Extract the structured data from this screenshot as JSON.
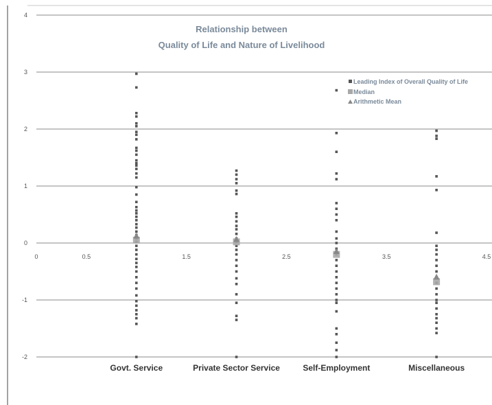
{
  "chart_data": {
    "type": "scatter",
    "title_lines": [
      "Relationship between",
      "Quality of Life and Nature of Livelihood"
    ],
    "xlim": [
      0,
      4.5
    ],
    "ylim": [
      -2,
      4
    ],
    "x_ticks": [
      0,
      0.5,
      1.5,
      2.5,
      3.5,
      4.5
    ],
    "x_tick_labels": [
      "0",
      "0.5",
      "1.5",
      "2.5",
      "3.5",
      "4.5"
    ],
    "y_ticks": [
      4,
      3,
      2,
      1,
      0,
      -1,
      -2
    ],
    "y_tick_labels": [
      "4",
      "3",
      "2",
      "1",
      "0",
      "-1",
      "-2"
    ],
    "categories": [
      {
        "label": "Govt. Service",
        "x": 1
      },
      {
        "label": "Private Sector Service",
        "x": 2
      },
      {
        "label": "Self-Employment",
        "x": 3
      },
      {
        "label": "Miscellaneous",
        "x": 4
      }
    ],
    "legend": {
      "placement": "top-right",
      "entries": [
        {
          "label": "Leading Index of Overall Quality of Life",
          "marker": "square-small",
          "color": "#555555"
        },
        {
          "label": "Median",
          "marker": "square",
          "color": "#a8a8a8"
        },
        {
          "label": "Arithmetic Mean",
          "marker": "triangle",
          "color": "#888888"
        }
      ]
    },
    "series": [
      {
        "name": "Leading Index of Overall Quality of Life",
        "points": [
          [
            1,
            2.97
          ],
          [
            1,
            2.73
          ],
          [
            1,
            2.28
          ],
          [
            1,
            2.22
          ],
          [
            1,
            2.1
          ],
          [
            1,
            2.05
          ],
          [
            1,
            1.95
          ],
          [
            1,
            1.9
          ],
          [
            1,
            1.82
          ],
          [
            1,
            1.67
          ],
          [
            1,
            1.62
          ],
          [
            1,
            1.55
          ],
          [
            1,
            1.45
          ],
          [
            1,
            1.4
          ],
          [
            1,
            1.36
          ],
          [
            1,
            1.3
          ],
          [
            1,
            1.22
          ],
          [
            1,
            1.15
          ],
          [
            1,
            0.98
          ],
          [
            1,
            0.85
          ],
          [
            1,
            0.72
          ],
          [
            1,
            0.63
          ],
          [
            1,
            0.57
          ],
          [
            1,
            0.52
          ],
          [
            1,
            0.46
          ],
          [
            1,
            0.4
          ],
          [
            1,
            0.33
          ],
          [
            1,
            0.27
          ],
          [
            1,
            0.2
          ],
          [
            1,
            0.14
          ],
          [
            1,
            0.08
          ],
          [
            1,
            0.02
          ],
          [
            1,
            -0.05
          ],
          [
            1,
            -0.12
          ],
          [
            1,
            -0.2
          ],
          [
            1,
            -0.28
          ],
          [
            1,
            -0.35
          ],
          [
            1,
            -0.42
          ],
          [
            1,
            -0.5
          ],
          [
            1,
            -0.6
          ],
          [
            1,
            -0.7
          ],
          [
            1,
            -0.8
          ],
          [
            1,
            -0.92
          ],
          [
            1,
            -1.02
          ],
          [
            1,
            -1.1
          ],
          [
            1,
            -1.18
          ],
          [
            1,
            -1.25
          ],
          [
            1,
            -1.32
          ],
          [
            1,
            -1.42
          ],
          [
            1,
            -2.0
          ],
          [
            2,
            1.27
          ],
          [
            2,
            1.2
          ],
          [
            2,
            1.12
          ],
          [
            2,
            1.05
          ],
          [
            2,
            0.92
          ],
          [
            2,
            0.86
          ],
          [
            2,
            0.52
          ],
          [
            2,
            0.46
          ],
          [
            2,
            0.38
          ],
          [
            2,
            0.3
          ],
          [
            2,
            0.24
          ],
          [
            2,
            0.16
          ],
          [
            2,
            0.08
          ],
          [
            2,
            0.02
          ],
          [
            2,
            -0.05
          ],
          [
            2,
            -0.12
          ],
          [
            2,
            -0.2
          ],
          [
            2,
            -0.3
          ],
          [
            2,
            -0.4
          ],
          [
            2,
            -0.5
          ],
          [
            2,
            -0.62
          ],
          [
            2,
            -0.72
          ],
          [
            2,
            -0.9
          ],
          [
            2,
            -1.05
          ],
          [
            2,
            -1.28
          ],
          [
            2,
            -1.35
          ],
          [
            2,
            -2.0
          ],
          [
            3,
            2.68
          ],
          [
            3,
            1.93
          ],
          [
            3,
            1.6
          ],
          [
            3,
            1.22
          ],
          [
            3,
            1.12
          ],
          [
            3,
            0.7
          ],
          [
            3,
            0.6
          ],
          [
            3,
            0.5
          ],
          [
            3,
            0.4
          ],
          [
            3,
            0.2
          ],
          [
            3,
            0.08
          ],
          [
            3,
            0.0
          ],
          [
            3,
            -0.1
          ],
          [
            3,
            -0.2
          ],
          [
            3,
            -0.3
          ],
          [
            3,
            -0.4
          ],
          [
            3,
            -0.5
          ],
          [
            3,
            -0.6
          ],
          [
            3,
            -0.7
          ],
          [
            3,
            -0.8
          ],
          [
            3,
            -0.9
          ],
          [
            3,
            -1.0
          ],
          [
            3,
            -1.05
          ],
          [
            3,
            -1.2
          ],
          [
            3,
            -1.5
          ],
          [
            3,
            -1.6
          ],
          [
            3,
            -1.75
          ],
          [
            3,
            -1.88
          ],
          [
            3,
            -2.0
          ],
          [
            4,
            1.97
          ],
          [
            4,
            1.88
          ],
          [
            4,
            1.83
          ],
          [
            4,
            1.17
          ],
          [
            4,
            0.93
          ],
          [
            4,
            0.18
          ],
          [
            4,
            -0.05
          ],
          [
            4,
            -0.12
          ],
          [
            4,
            -0.2
          ],
          [
            4,
            -0.3
          ],
          [
            4,
            -0.4
          ],
          [
            4,
            -0.5
          ],
          [
            4,
            -0.6
          ],
          [
            4,
            -0.7
          ],
          [
            4,
            -0.8
          ],
          [
            4,
            -0.9
          ],
          [
            4,
            -1.0
          ],
          [
            4,
            -1.05
          ],
          [
            4,
            -1.15
          ],
          [
            4,
            -1.25
          ],
          [
            4,
            -1.32
          ],
          [
            4,
            -1.4
          ],
          [
            4,
            -1.5
          ],
          [
            4,
            -1.58
          ],
          [
            4,
            -2.0
          ]
        ]
      },
      {
        "name": "Median",
        "points": [
          [
            1,
            0.05
          ],
          [
            2,
            0.02
          ],
          [
            3,
            -0.2
          ],
          [
            4,
            -0.68
          ]
        ]
      },
      {
        "name": "Arithmetic Mean",
        "points": [
          [
            1,
            0.12
          ],
          [
            2,
            0.06
          ],
          [
            3,
            -0.15
          ],
          [
            4,
            -0.6
          ]
        ]
      }
    ],
    "grid": {
      "horizontal": true,
      "vertical": false
    },
    "colors": {
      "points": "#555555",
      "median": "#a8a8a8",
      "mean": "#888888",
      "grid": "#8a8a8a",
      "title": "#7a8a9a"
    }
  }
}
